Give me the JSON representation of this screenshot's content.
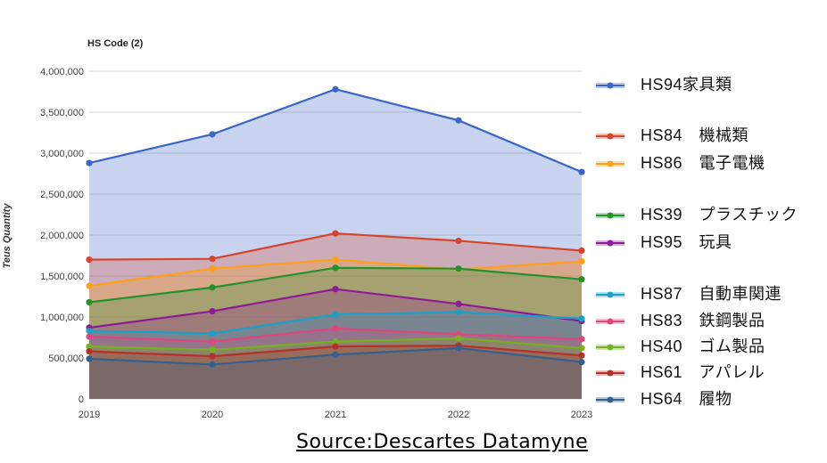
{
  "source_text": "Source:Descartes Datamyne",
  "chart_data": {
    "type": "area",
    "title": "HS Code (2)",
    "ylabel": "Teus Quantity",
    "xlabel": "",
    "x": [
      "2019",
      "2020",
      "2021",
      "2022",
      "2023"
    ],
    "ylim": [
      0,
      4000000
    ],
    "yticks": [
      "0",
      "500,000",
      "1,000,000",
      "1,500,000",
      "2,000,000",
      "2,500,000",
      "3,000,000",
      "3,500,000",
      "4,000,000"
    ],
    "grid": true,
    "legend_position": "right",
    "series": [
      {
        "name": "HS94家具類",
        "color": "#3a66c4",
        "values": [
          2880000,
          3230000,
          3780000,
          3400000,
          2770000
        ]
      },
      {
        "name": "HS84　機械類",
        "color": "#d5442c",
        "values": [
          1700000,
          1710000,
          2020000,
          1930000,
          1810000
        ]
      },
      {
        "name": "HS86　電子電機",
        "color": "#ff9f1a",
        "values": [
          1380000,
          1590000,
          1700000,
          1580000,
          1680000
        ]
      },
      {
        "name": "HS39　プラスチック",
        "color": "#23912c",
        "values": [
          1180000,
          1360000,
          1600000,
          1590000,
          1460000
        ]
      },
      {
        "name": "HS95　玩具",
        "color": "#8e1a98",
        "values": [
          870000,
          1070000,
          1340000,
          1160000,
          950000
        ]
      },
      {
        "name": "HS87　自動車関連",
        "color": "#19a2c8",
        "values": [
          830000,
          800000,
          1030000,
          1060000,
          980000
        ]
      },
      {
        "name": "HS83　鉄鋼製品",
        "color": "#e0467c",
        "values": [
          760000,
          700000,
          860000,
          790000,
          730000
        ]
      },
      {
        "name": "HS40　ゴム製品",
        "color": "#77b01f",
        "values": [
          640000,
          600000,
          700000,
          740000,
          620000
        ]
      },
      {
        "name": "HS61　アパレル",
        "color": "#b5302a",
        "values": [
          580000,
          520000,
          640000,
          650000,
          530000
        ]
      },
      {
        "name": "HS64　履物",
        "color": "#33608f",
        "values": [
          490000,
          420000,
          540000,
          620000,
          450000
        ]
      }
    ]
  }
}
